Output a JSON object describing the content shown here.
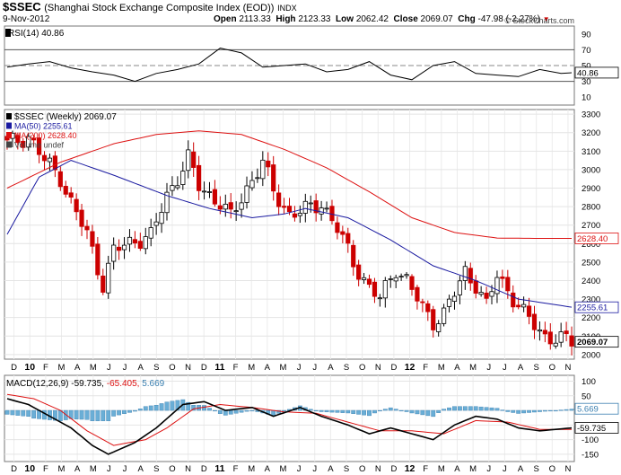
{
  "header": {
    "symbol": "$SSEC",
    "name": "(Shanghai Stock Exchange Composite Index (EOD))",
    "exchange": "INDX",
    "date": "9-Nov-2012",
    "open_label": "Open",
    "open": "2113.33",
    "high_label": "High",
    "high": "2123.33",
    "low_label": "Low",
    "low": "2062.42",
    "close_label": "Close",
    "close": "2069.07",
    "chg_label": "Chg",
    "chg": "-47.98 (-2.27%)",
    "chg_arrow": "▼",
    "copyright": "© StockCharts.com"
  },
  "colors": {
    "up": "#000000",
    "down": "#cc0000",
    "ma50": "#1a1aa0",
    "ma200": "#dd1111",
    "macd": "#000000",
    "signal": "#dd1111",
    "hist": "#6aaed6",
    "rsi": "#000000"
  },
  "chart_data": [
    {
      "type": "line",
      "panel": "RSI",
      "legend": "RSI(14) 40.86",
      "last_label": "40.86",
      "y_ticks": [
        "90",
        "70",
        "50",
        "30",
        "10"
      ],
      "ylim": [
        0,
        100
      ],
      "reference_lines": [
        70,
        30
      ],
      "dashed_line": 50,
      "x": [
        0,
        4,
        8,
        12,
        16,
        20,
        24,
        28,
        32,
        36,
        40,
        44,
        48,
        52,
        56,
        60,
        64,
        68,
        72,
        76,
        80,
        84,
        88,
        92,
        96,
        100,
        104,
        106
      ],
      "values": [
        48,
        52,
        55,
        47,
        42,
        38,
        30,
        40,
        45,
        52,
        72,
        66,
        48,
        50,
        52,
        42,
        45,
        55,
        38,
        32,
        50,
        55,
        40,
        38,
        36,
        45,
        40,
        40.86
      ]
    },
    {
      "type": "candlestick",
      "panel": "price",
      "legend": [
        "$SSEC (Weekly) 2069.07",
        "MA(50) 2255.61",
        "MA(200) 2628.40",
        "Volume undef"
      ],
      "y_ticks": [
        "3300",
        "3200",
        "3100",
        "3000",
        "2900",
        "2800",
        "2700",
        "2600",
        "2500",
        "2400",
        "2300",
        "2200",
        "2100",
        "2000"
      ],
      "ylim": [
        1975,
        3325
      ],
      "x_labels": [
        "D",
        "10",
        "F",
        "M",
        "A",
        "M",
        "J",
        "J",
        "A",
        "S",
        "O",
        "N",
        "D",
        "11",
        "F",
        "M",
        "A",
        "M",
        "J",
        "J",
        "A",
        "S",
        "O",
        "N",
        "D",
        "12",
        "F",
        "M",
        "A",
        "M",
        "J",
        "J",
        "A",
        "S",
        "O",
        "N"
      ],
      "last_labels": {
        "ma200": "2628.40",
        "ma50": "2255.61",
        "close": "2069.07"
      },
      "anchors_close": [
        [
          0,
          3140
        ],
        [
          4,
          3180
        ],
        [
          7,
          3050
        ],
        [
          10,
          2960
        ],
        [
          12,
          2820
        ],
        [
          15,
          2650
        ],
        [
          18,
          2380
        ],
        [
          20,
          2560
        ],
        [
          24,
          2620
        ],
        [
          27,
          2640
        ],
        [
          30,
          2860
        ],
        [
          34,
          3060
        ],
        [
          36,
          2910
        ],
        [
          40,
          2820
        ],
        [
          42,
          2740
        ],
        [
          45,
          2900
        ],
        [
          48,
          3040
        ],
        [
          50,
          2880
        ],
        [
          53,
          2760
        ],
        [
          56,
          2780
        ],
        [
          59,
          2820
        ],
        [
          62,
          2680
        ],
        [
          65,
          2500
        ],
        [
          68,
          2360
        ],
        [
          70,
          2300
        ],
        [
          73,
          2470
        ],
        [
          75,
          2400
        ],
        [
          78,
          2250
        ],
        [
          80,
          2180
        ],
        [
          82,
          2220
        ],
        [
          84,
          2330
        ],
        [
          86,
          2450
        ],
        [
          88,
          2380
        ],
        [
          90,
          2260
        ],
        [
          92,
          2430
        ],
        [
          94,
          2350
        ],
        [
          97,
          2220
        ],
        [
          99,
          2160
        ],
        [
          101,
          2100
        ],
        [
          104,
          2080
        ],
        [
          106,
          2069
        ]
      ],
      "ma50_anchors": [
        [
          0,
          2650
        ],
        [
          6,
          2960
        ],
        [
          12,
          3050
        ],
        [
          20,
          2970
        ],
        [
          30,
          2860
        ],
        [
          38,
          2790
        ],
        [
          46,
          2740
        ],
        [
          52,
          2760
        ],
        [
          56,
          2790
        ],
        [
          64,
          2740
        ],
        [
          72,
          2620
        ],
        [
          80,
          2480
        ],
        [
          88,
          2400
        ],
        [
          96,
          2300
        ],
        [
          106,
          2256
        ]
      ],
      "ma200_anchors": [
        [
          0,
          2900
        ],
        [
          10,
          3040
        ],
        [
          20,
          3140
        ],
        [
          28,
          3190
        ],
        [
          36,
          3210
        ],
        [
          44,
          3190
        ],
        [
          52,
          3110
        ],
        [
          60,
          3010
        ],
        [
          68,
          2880
        ],
        [
          76,
          2740
        ],
        [
          84,
          2660
        ],
        [
          92,
          2630
        ],
        [
          100,
          2628
        ],
        [
          106,
          2628
        ]
      ]
    },
    {
      "type": "line",
      "panel": "MACD",
      "legend_label": "MACD(12,26,9)",
      "legend_values": [
        "-59.735",
        "-65.405",
        "5.669"
      ],
      "y_ticks": [
        "100",
        "50",
        "0",
        "-50",
        "-100",
        "-150"
      ],
      "ylim": [
        -175,
        120
      ],
      "last_labels": {
        "hist": "5.669",
        "macd": "-59.735"
      },
      "x_labels": [
        "D",
        "10",
        "F",
        "M",
        "A",
        "M",
        "J",
        "J",
        "A",
        "S",
        "O",
        "N",
        "D",
        "11",
        "F",
        "M",
        "A",
        "M",
        "J",
        "J",
        "A",
        "S",
        "O",
        "N",
        "D",
        "12",
        "F",
        "M",
        "A",
        "M",
        "J",
        "J",
        "A",
        "S",
        "O",
        "N"
      ],
      "macd_anchors": [
        [
          0,
          40
        ],
        [
          4,
          20
        ],
        [
          8,
          -20
        ],
        [
          12,
          -60
        ],
        [
          16,
          -120
        ],
        [
          19,
          -150
        ],
        [
          24,
          -110
        ],
        [
          28,
          -60
        ],
        [
          33,
          20
        ],
        [
          37,
          30
        ],
        [
          41,
          0
        ],
        [
          46,
          10
        ],
        [
          50,
          -20
        ],
        [
          55,
          10
        ],
        [
          59,
          -20
        ],
        [
          64,
          -50
        ],
        [
          68,
          -80
        ],
        [
          72,
          -60
        ],
        [
          76,
          -80
        ],
        [
          80,
          -100
        ],
        [
          84,
          -50
        ],
        [
          88,
          -20
        ],
        [
          92,
          -30
        ],
        [
          96,
          -60
        ],
        [
          100,
          -70
        ],
        [
          106,
          -60
        ]
      ],
      "signal_anchors": [
        [
          0,
          55
        ],
        [
          5,
          40
        ],
        [
          10,
          0
        ],
        [
          15,
          -70
        ],
        [
          20,
          -120
        ],
        [
          26,
          -100
        ],
        [
          30,
          -60
        ],
        [
          35,
          5
        ],
        [
          40,
          20
        ],
        [
          46,
          10
        ],
        [
          52,
          -5
        ],
        [
          58,
          -10
        ],
        [
          64,
          -40
        ],
        [
          70,
          -70
        ],
        [
          76,
          -70
        ],
        [
          82,
          -80
        ],
        [
          88,
          -35
        ],
        [
          94,
          -40
        ],
        [
          100,
          -65
        ],
        [
          106,
          -65
        ]
      ]
    }
  ]
}
